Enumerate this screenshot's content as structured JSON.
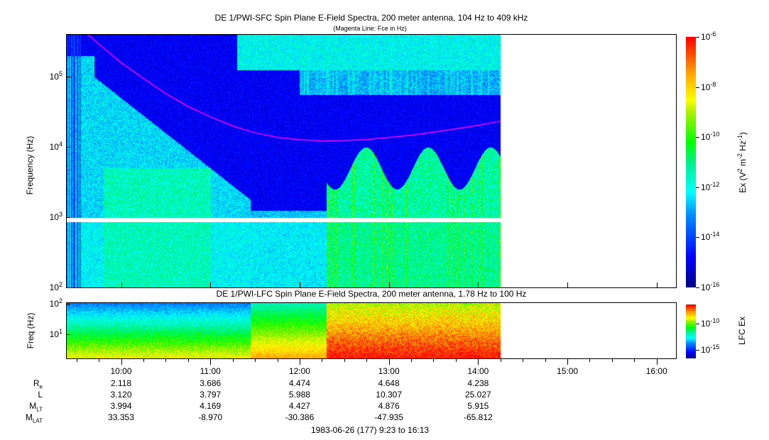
{
  "chart_data": {
    "type": "heatmap",
    "panels": [
      {
        "title": "DE 1/PWI-SFC  Spin Plane E-Field Spectra, 200 meter antenna, 104 Hz to 409 kHz",
        "subtitle": "(Magenta Line: Fce in Hz)",
        "ylabel": "Frequency (Hz)",
        "yscale": "log",
        "ylim": [
          100,
          409000
        ],
        "yticks": [
          {
            "v": 100,
            "label": "10",
            "exp": "2"
          },
          {
            "v": 1000,
            "label": "10",
            "exp": "3"
          },
          {
            "v": 10000,
            "label": "10",
            "exp": "4"
          },
          {
            "v": 100000,
            "label": "10",
            "exp": "5"
          }
        ],
        "colorbar": {
          "label": "Ex (V",
          "label_mid": "m",
          "label_end": "Hz",
          "clim_log10": [
            -16,
            -6
          ],
          "ticks": [
            {
              "v": -6,
              "exp": "-6"
            },
            {
              "v": -8,
              "exp": "-8"
            },
            {
              "v": -10,
              "exp": "-10"
            },
            {
              "v": -12,
              "exp": "-12"
            },
            {
              "v": -14,
              "exp": "-14"
            },
            {
              "v": -16,
              "exp": "-16"
            }
          ]
        },
        "fce_line": {
          "color": "#ff00ff",
          "time_hours": [
            9.62,
            9.8,
            10.0,
            10.25,
            10.5,
            10.75,
            11.0,
            11.25,
            11.5,
            11.75,
            12.0,
            12.25,
            12.5,
            12.75,
            13.0,
            13.25,
            13.5,
            13.75,
            14.0,
            14.25
          ],
          "freq_hz": [
            409000,
            260000,
            160000,
            95000,
            58000,
            38000,
            27000,
            20000,
            16000,
            13800,
            12700,
            12300,
            12400,
            12900,
            13700,
            14800,
            16300,
            18200,
            20500,
            23500
          ]
        },
        "data_gap_hz": [
          870,
          1000
        ]
      },
      {
        "title": "DE 1/PWI-LFC  Spin Plane E-Field Spectra, 200 meter antenna, 1.78 Hz to 100 Hz",
        "ylabel": "Freq (Hz)",
        "yscale": "log",
        "ylim": [
          1.78,
          100
        ],
        "yticks": [
          {
            "v": 10,
            "label": "10",
            "exp": "1"
          },
          {
            "v": 100,
            "label": "10",
            "exp": "2"
          }
        ],
        "colorbar": {
          "label": "LFC Ex",
          "ticks": [
            {
              "v": -10,
              "exp": "-10"
            },
            {
              "v": -15,
              "exp": "-15"
            }
          ]
        }
      }
    ],
    "xlim_hours": [
      9.3833,
      16.2167
    ],
    "data_end_hours": 14.25,
    "xticks": [
      "10:00",
      "11:00",
      "12:00",
      "13:00",
      "14:00",
      "15:00",
      "16:00"
    ],
    "xlabel": "1983-06-26 (177) 9:23 to 16:13",
    "ephemeris": [
      {
        "label": "R",
        "sub": "e",
        "values": [
          "2.118",
          "3.686",
          "4.474",
          "4.648",
          "4.238"
        ]
      },
      {
        "label": "L",
        "sub": "",
        "values": [
          "3.120",
          "3.797",
          "5.988",
          "10.307",
          "25.027"
        ]
      },
      {
        "label": "M",
        "sub": "LT",
        "values": [
          "3.994",
          "4.169",
          "4.427",
          "4.876",
          "5.915"
        ]
      },
      {
        "label": "M",
        "sub": "LAT",
        "values": [
          "33.353",
          "-8.970",
          "-30.386",
          "-47.935",
          "-65.812"
        ]
      }
    ]
  }
}
